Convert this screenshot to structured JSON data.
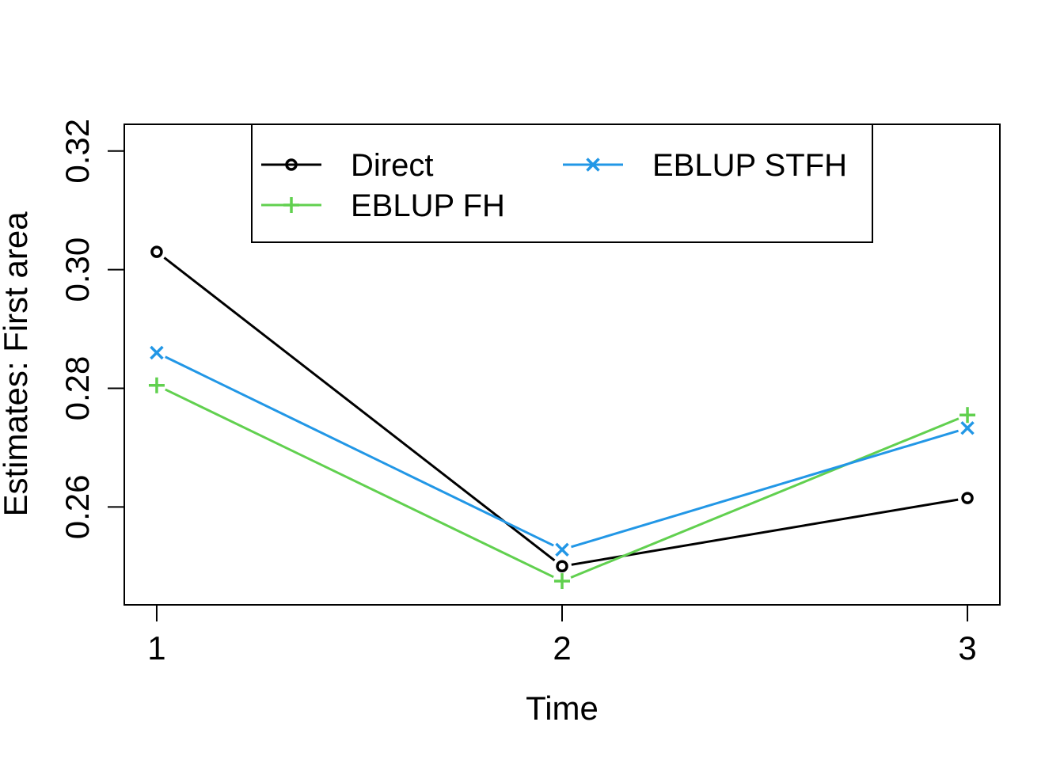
{
  "chart_data": {
    "type": "line",
    "title": "",
    "xlabel": "Time",
    "ylabel": "Estimates: First area",
    "x": [
      1,
      2,
      3
    ],
    "xlim": [
      0.92,
      3.08
    ],
    "ylim": [
      0.2435,
      0.3245
    ],
    "x_ticks": [
      "1",
      "2",
      "3"
    ],
    "y_ticks": [
      "0.26",
      "0.28",
      "0.30",
      "0.32"
    ],
    "grid": false,
    "legend_position": "top-center",
    "series": [
      {
        "name": "Direct",
        "values": [
          0.303,
          0.25,
          0.2615
        ],
        "color": "#000000",
        "marker": "circle"
      },
      {
        "name": "EBLUP FH",
        "values": [
          0.2805,
          0.2475,
          0.2755
        ],
        "color": "#61D04F",
        "marker": "plus"
      },
      {
        "name": "EBLUP STFH",
        "values": [
          0.286,
          0.2528,
          0.2733
        ],
        "color": "#2297E6",
        "marker": "cross"
      }
    ]
  }
}
